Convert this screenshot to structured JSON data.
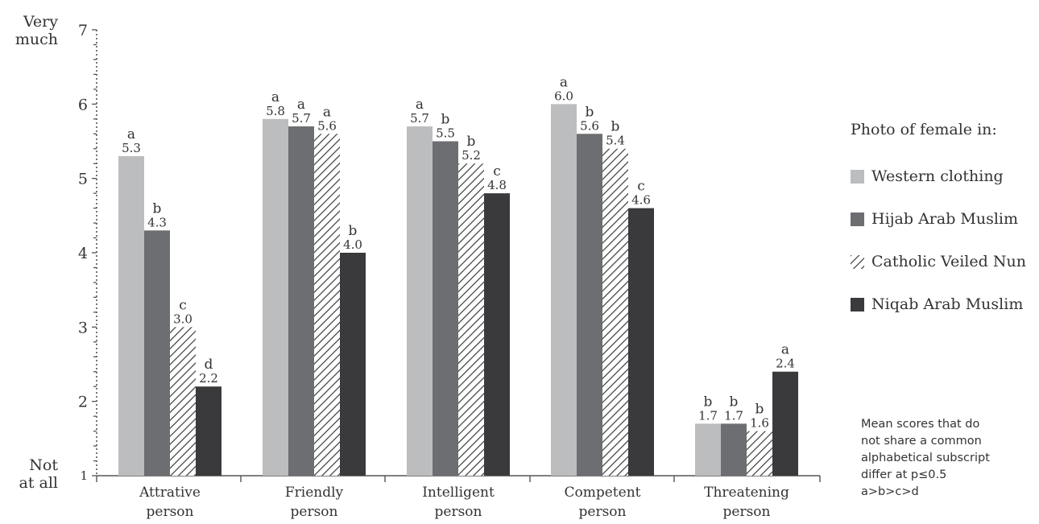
{
  "chart_data": {
    "type": "bar",
    "categories": [
      "Attrative person",
      "Friendly person",
      "Intelligent person",
      "Competent person",
      "Threatening person"
    ],
    "series": [
      {
        "name": "Western clothing",
        "color": "#bcbdbf",
        "pattern": "solid",
        "values": [
          5.3,
          5.8,
          5.7,
          6.0,
          1.7
        ],
        "labels": [
          "5.3",
          "5.8",
          "5.7",
          "6.0",
          "1.7"
        ],
        "letters": [
          "a",
          "a",
          "a",
          "a",
          "b"
        ]
      },
      {
        "name": "Hijab Arab Muslim",
        "color": "#6d6e71",
        "pattern": "solid",
        "values": [
          4.3,
          5.7,
          5.5,
          5.6,
          1.7
        ],
        "labels": [
          "4.3",
          "5.7",
          "5.5",
          "5.6",
          "1.7"
        ],
        "letters": [
          "b",
          "a",
          "b",
          "b",
          "b"
        ]
      },
      {
        "name": "Catholic Veiled Nun",
        "color": "#3a3a3c",
        "pattern": "hatch",
        "values": [
          3.0,
          5.6,
          5.2,
          5.4,
          1.6
        ],
        "labels": [
          "3.0",
          "5.6",
          "5.2",
          "5.4",
          "1.6"
        ],
        "letters": [
          "c",
          "a",
          "b",
          "b",
          "b"
        ]
      },
      {
        "name": "Niqab Arab Muslim",
        "color": "#3a3a3c",
        "pattern": "solid",
        "values": [
          2.2,
          4.0,
          4.8,
          4.6,
          2.4
        ],
        "labels": [
          "2.2",
          "4.0",
          "4.8",
          "4.6",
          "2.4"
        ],
        "letters": [
          "d",
          "b",
          "c",
          "c",
          "a"
        ]
      }
    ],
    "ylim": [
      1,
      7
    ],
    "yticks": [
      "1",
      "2",
      "3",
      "4",
      "5",
      "6",
      "7"
    ],
    "y_top_label": "Very\nmuch",
    "y_bottom_label": "Not\nat all",
    "grid": false,
    "legend_position": "right"
  },
  "legend": {
    "title": "Photo of female in:"
  },
  "note": {
    "lines": [
      "Mean scores that do",
      "not share a common",
      "alphabetical subscript",
      "differ at p≤0.5",
      "a>b>c>d"
    ]
  }
}
